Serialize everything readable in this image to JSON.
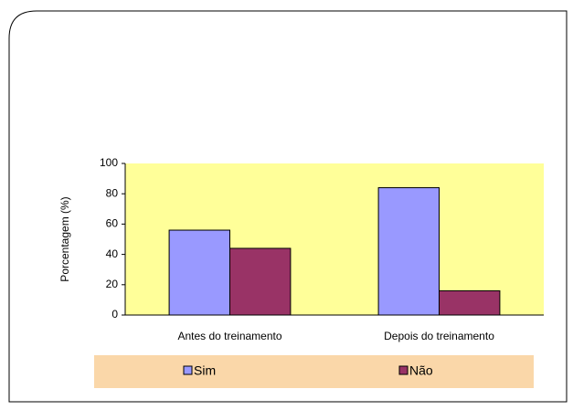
{
  "chart_data": {
    "type": "bar",
    "y_label": "Porcentagem (%)",
    "categories": [
      "Antes do treinamento",
      "Depois do treinamento"
    ],
    "series": [
      {
        "name": "Sim",
        "color": "#9999ff",
        "values": [
          56,
          84
        ]
      },
      {
        "name": "Não",
        "color": "#993366",
        "values": [
          44,
          16
        ]
      }
    ],
    "ylim": [
      0,
      100
    ],
    "yticks": [
      0,
      20,
      40,
      60,
      80,
      100
    ],
    "plot_background": "#ffff99",
    "legend_background": "#fad7a9",
    "legend": "bottom"
  }
}
